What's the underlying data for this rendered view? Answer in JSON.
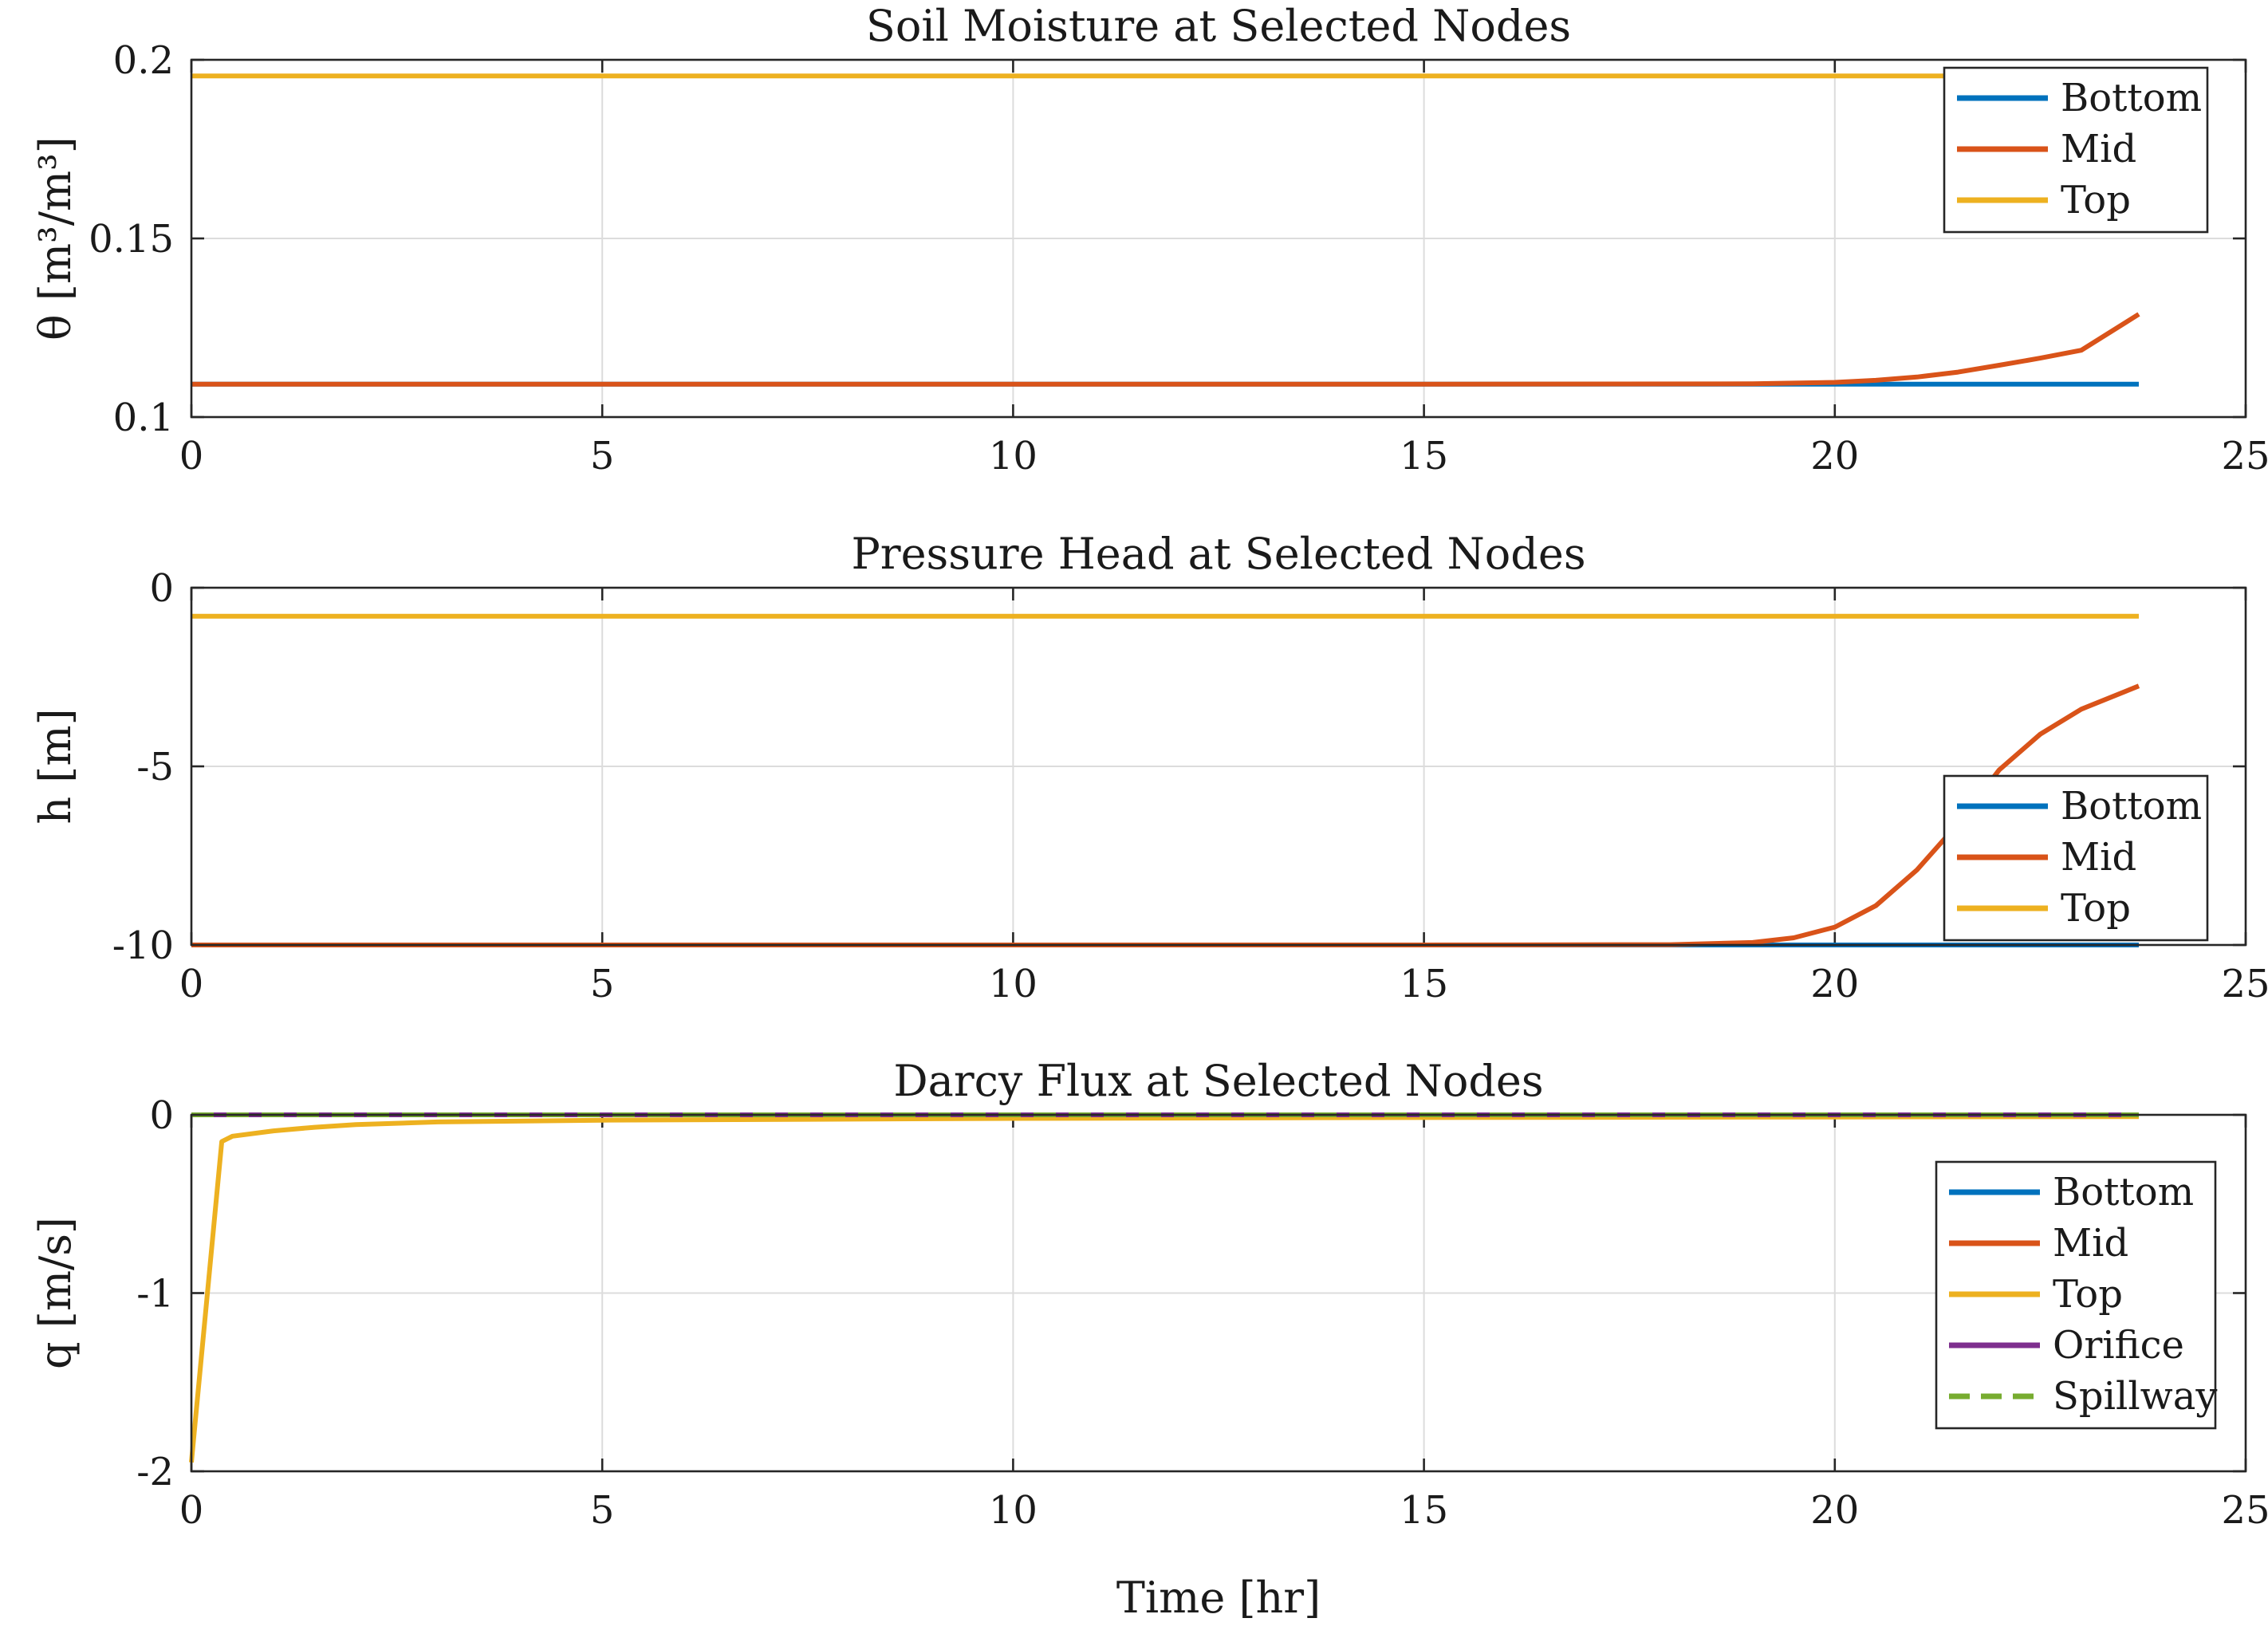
{
  "figure": {
    "xlabel": "Time [hr]"
  },
  "chart_data": [
    {
      "type": "line",
      "title": "Soil Moisture at Selected Nodes",
      "xlabel": "",
      "ylabel": "θ [m³/m³]",
      "xlim": [
        0,
        25
      ],
      "ylim": [
        0.1,
        0.2
      ],
      "xticks": [
        "0",
        "5",
        "10",
        "15",
        "20",
        "25"
      ],
      "yticks": [
        "0.1",
        "0.15",
        "0.2"
      ],
      "ytick_values": [
        0.1,
        0.15,
        0.2
      ],
      "grid": true,
      "legend_position": "top-right",
      "series": [
        {
          "name": "Bottom",
          "color": "#0072BD",
          "dash": false,
          "x": [
            0,
            5,
            10,
            15,
            20,
            23.7
          ],
          "y": [
            0.1092,
            0.1092,
            0.1092,
            0.1092,
            0.1092,
            0.1092
          ]
        },
        {
          "name": "Mid",
          "color": "#D95319",
          "dash": false,
          "x": [
            0,
            5,
            10,
            15,
            19,
            20,
            20.5,
            21,
            21.5,
            22,
            22.5,
            23,
            23.7
          ],
          "y": [
            0.1092,
            0.1092,
            0.1092,
            0.1092,
            0.1093,
            0.1097,
            0.1103,
            0.1112,
            0.1126,
            0.1145,
            0.1165,
            0.1187,
            0.1288
          ]
        },
        {
          "name": "Top",
          "color": "#EDB120",
          "dash": false,
          "x": [
            0,
            5,
            10,
            15,
            20,
            23.7
          ],
          "y": [
            0.1955,
            0.1955,
            0.1955,
            0.1955,
            0.1955,
            0.1955
          ]
        }
      ]
    },
    {
      "type": "line",
      "title": "Pressure Head at Selected Nodes",
      "xlabel": "",
      "ylabel": "h [m]",
      "xlim": [
        0,
        25
      ],
      "ylim": [
        -10,
        0
      ],
      "xticks": [
        "0",
        "5",
        "10",
        "15",
        "20",
        "25"
      ],
      "yticks": [
        "-10",
        "-5",
        "0"
      ],
      "ytick_values": [
        -10,
        -5,
        0
      ],
      "grid": true,
      "legend_position": "bottom-right",
      "series": [
        {
          "name": "Bottom",
          "color": "#0072BD",
          "dash": false,
          "x": [
            0,
            5,
            10,
            15,
            20,
            23.7
          ],
          "y": [
            -10,
            -10,
            -10,
            -10,
            -10,
            -10
          ]
        },
        {
          "name": "Mid",
          "color": "#D95319",
          "dash": false,
          "x": [
            0,
            5,
            10,
            15,
            18,
            19,
            19.5,
            20,
            20.5,
            21,
            21.5,
            22,
            22.5,
            23,
            23.7
          ],
          "y": [
            -10,
            -10,
            -10,
            -10,
            -9.99,
            -9.93,
            -9.8,
            -9.5,
            -8.9,
            -7.9,
            -6.6,
            -5.1,
            -4.1,
            -3.4,
            -2.75
          ]
        },
        {
          "name": "Top",
          "color": "#EDB120",
          "dash": false,
          "x": [
            0,
            5,
            10,
            15,
            20,
            23.7
          ],
          "y": [
            -0.8,
            -0.8,
            -0.8,
            -0.8,
            -0.8,
            -0.8
          ]
        }
      ]
    },
    {
      "type": "line",
      "title": "Darcy Flux at Selected Nodes",
      "xlabel": "Time [hr]",
      "ylabel": "q [m/s]",
      "xlim": [
        0,
        25
      ],
      "ylim": [
        -2,
        0
      ],
      "xticks": [
        "0",
        "5",
        "10",
        "15",
        "20",
        "25"
      ],
      "yticks": [
        "-2",
        "-1",
        "0"
      ],
      "ytick_values": [
        -2,
        -1,
        0
      ],
      "grid": true,
      "legend_position": "right",
      "series": [
        {
          "name": "Bottom",
          "color": "#0072BD",
          "dash": false,
          "x": [
            0,
            23.7
          ],
          "y": [
            0,
            0
          ]
        },
        {
          "name": "Mid",
          "color": "#D95319",
          "dash": false,
          "x": [
            0,
            23.7
          ],
          "y": [
            0,
            0
          ]
        },
        {
          "name": "Top",
          "color": "#EDB120",
          "dash": false,
          "x": [
            0,
            0.37,
            0.5,
            1,
            1.5,
            2,
            3,
            5,
            10,
            15,
            20,
            23.7
          ],
          "y": [
            -1.95,
            -0.15,
            -0.12,
            -0.09,
            -0.07,
            -0.055,
            -0.04,
            -0.03,
            -0.02,
            -0.015,
            -0.012,
            -0.01
          ]
        },
        {
          "name": "Orifice",
          "color": "#7E2F8E",
          "dash": false,
          "x": [
            0,
            23.7
          ],
          "y": [
            0,
            0
          ]
        },
        {
          "name": "Spillway",
          "color": "#77AC30",
          "dash": true,
          "x": [
            0,
            23.7
          ],
          "y": [
            0,
            0
          ]
        }
      ]
    }
  ]
}
